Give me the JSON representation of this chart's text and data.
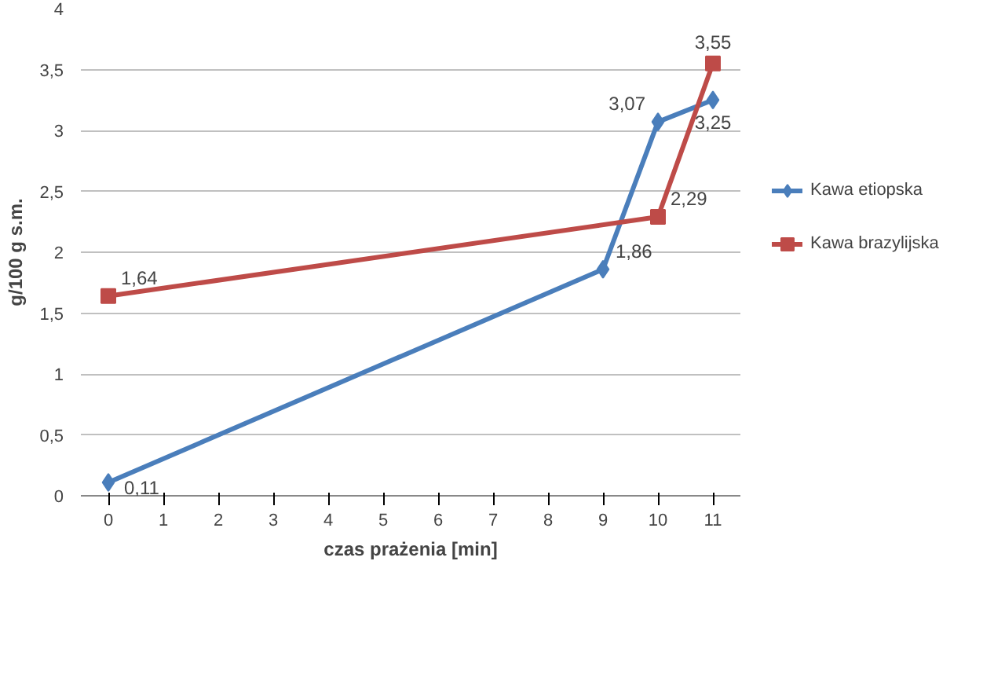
{
  "chart_data": {
    "type": "line",
    "xlabel": "czas prażenia [min]",
    "ylabel": "g/100 g s.m.",
    "xlim": [
      -0.5,
      11.5
    ],
    "xticks": [
      0,
      1,
      2,
      3,
      4,
      5,
      6,
      7,
      8,
      9,
      10,
      11
    ],
    "ylim": [
      0,
      4
    ],
    "yticks": [
      0,
      {
        "value": 0.5,
        "label": "0,5"
      },
      1,
      {
        "value": 1.5,
        "label": "1,5"
      },
      2,
      {
        "value": 2.5,
        "label": "2,5"
      },
      3,
      {
        "value": 3.5,
        "label": "3,5"
      },
      4
    ],
    "grid": "y",
    "legend": "right",
    "line_style": "solid",
    "series": [
      {
        "name": "Kawa etiopska",
        "color": "#4a7ebb",
        "marker": "diamond",
        "x": [
          0,
          9,
          10,
          11
        ],
        "values": [
          0.11,
          1.86,
          3.07,
          3.25
        ],
        "value_labels": [
          "0,11",
          "1,86",
          "3,07",
          "3,25"
        ]
      },
      {
        "name": "Kawa brazylijska",
        "color": "#be4b48",
        "marker": "square",
        "x": [
          0,
          10,
          11
        ],
        "values": [
          1.64,
          2.29,
          3.55
        ],
        "value_labels": [
          "1,64",
          "2,29",
          "3,55"
        ]
      }
    ]
  }
}
